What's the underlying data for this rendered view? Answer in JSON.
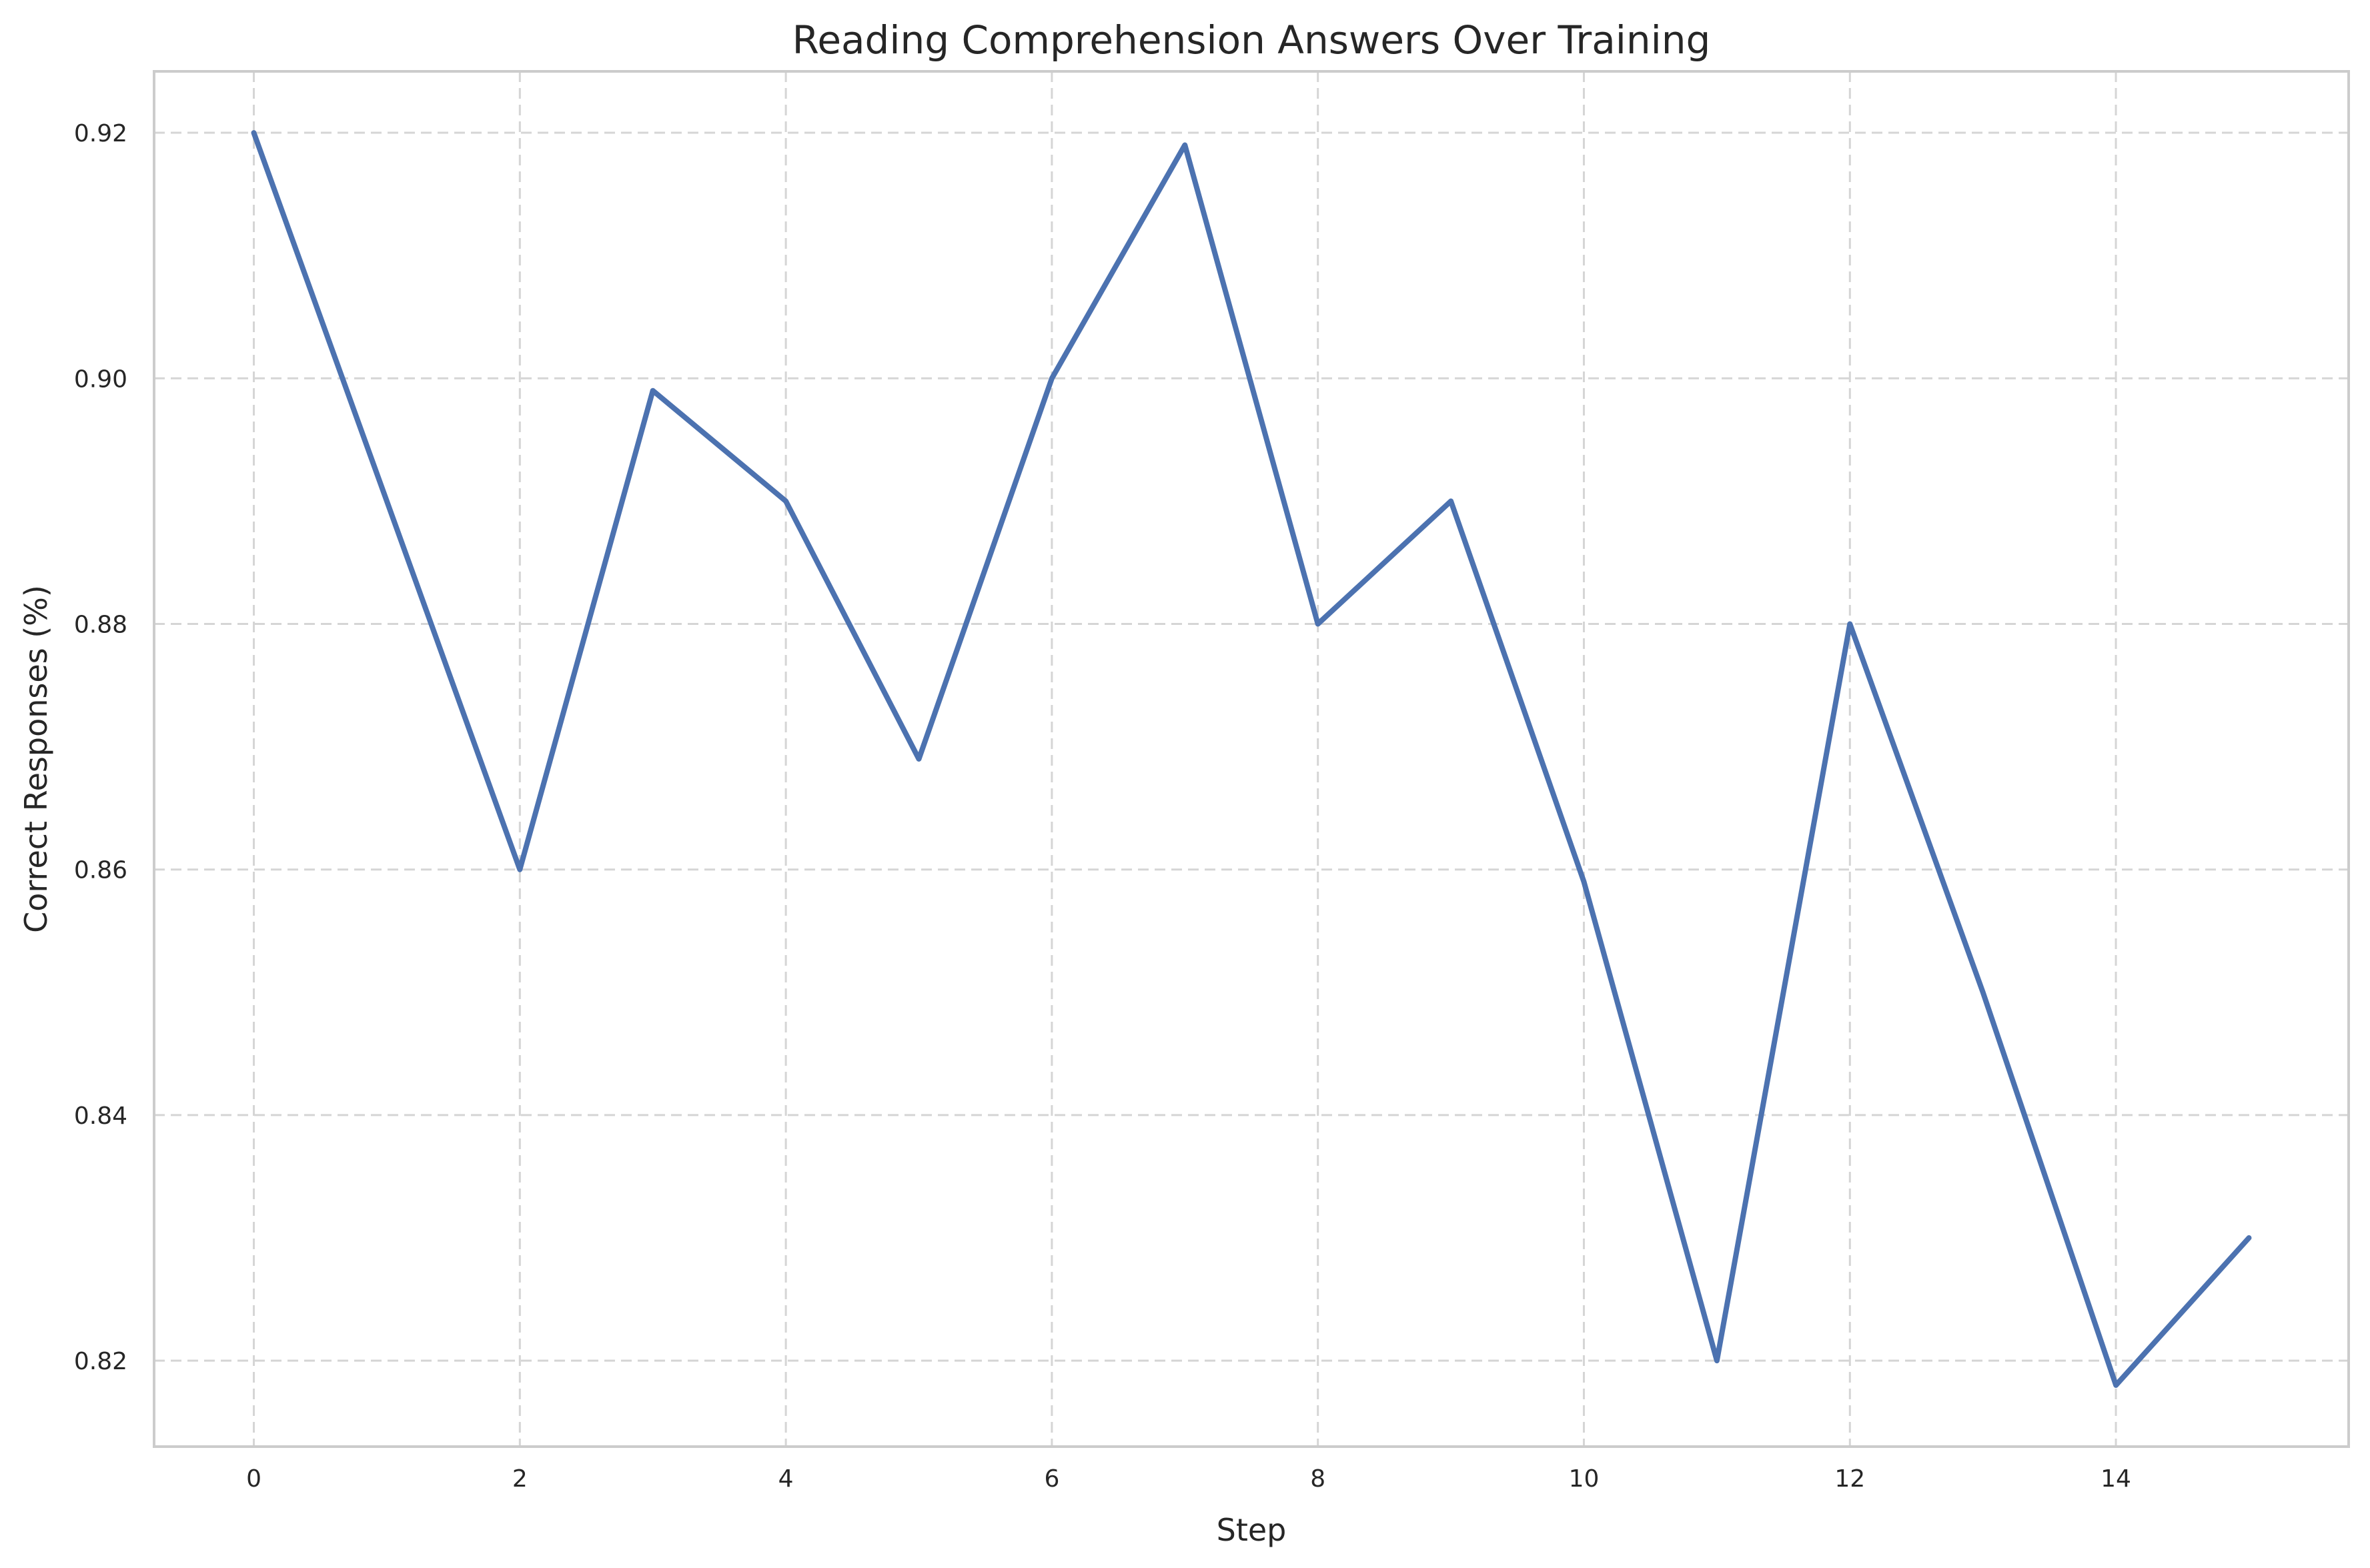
{
  "chart_data": {
    "type": "line",
    "title": "Reading Comprehension Answers Over Training",
    "xlabel": "Step",
    "ylabel": "Correct Responses (%)",
    "x": [
      0,
      1,
      2,
      3,
      4,
      5,
      6,
      7,
      8,
      9,
      10,
      11,
      12,
      13,
      14,
      15
    ],
    "series": [
      {
        "values": [
          0.92,
          0.89,
          0.86,
          0.899,
          0.89,
          0.869,
          0.9,
          0.919,
          0.88,
          0.89,
          0.859,
          0.82,
          0.88,
          0.85,
          0.818,
          0.83
        ]
      }
    ],
    "xlim": [
      -0.75,
      15.75
    ],
    "ylim": [
      0.813,
      0.925
    ],
    "xticks": [
      0,
      2,
      4,
      6,
      8,
      10,
      12,
      14
    ],
    "yticks": [
      0.82,
      0.84,
      0.86,
      0.88,
      0.9,
      0.92
    ],
    "grid": true,
    "legend": "none",
    "colors": {
      "line": "#4c72b0",
      "grid": "#d5d5d5",
      "frame": "#cccccc",
      "text": "#262626"
    }
  }
}
